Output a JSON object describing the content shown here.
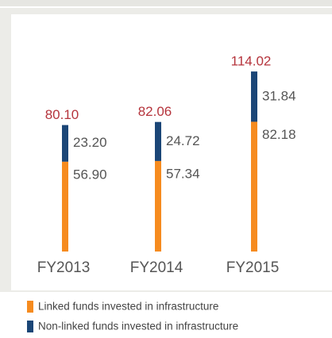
{
  "chart_data": {
    "type": "stacked_bar",
    "categories": [
      "FY2013",
      "FY2014",
      "FY2015"
    ],
    "series": [
      {
        "name": "Linked funds invested in infrastructure",
        "color": "#f68b1f",
        "values": [
          56.9,
          57.34,
          82.18
        ],
        "value_labels": [
          "56.90",
          "57.34",
          "82.18"
        ]
      },
      {
        "name": "Non-linked funds invested in infrastructure",
        "color": "#1b4677",
        "values": [
          23.2,
          24.72,
          31.84
        ],
        "value_labels": [
          "23.20",
          "24.72",
          "31.84"
        ]
      }
    ],
    "totals": [
      80.1,
      82.06,
      114.02
    ],
    "total_labels": [
      "80.10",
      "82.06",
      "114.02"
    ],
    "total_color": "#b5343c"
  }
}
